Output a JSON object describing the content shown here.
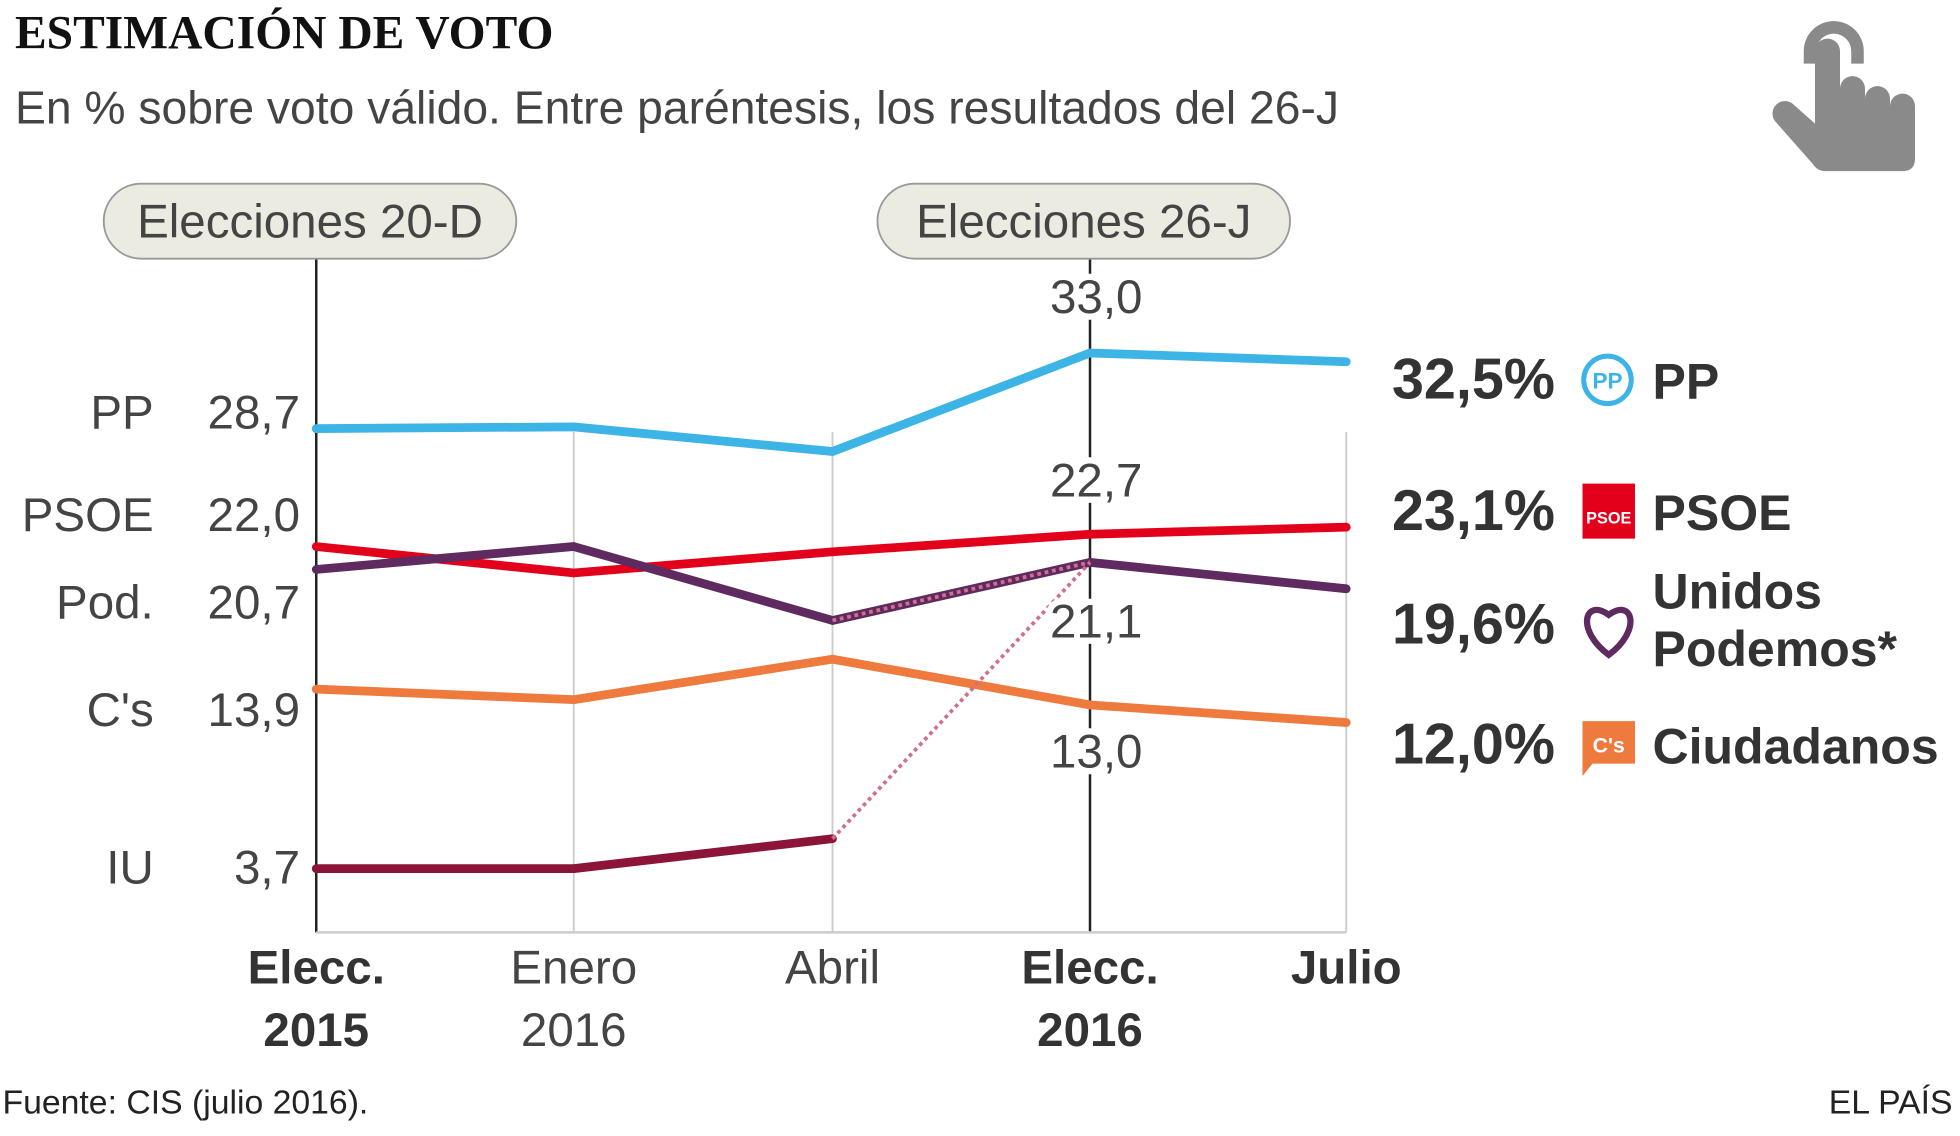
{
  "chart_data": {
    "type": "line",
    "title": "ESTIMACIÓN DE VOTO",
    "subtitle": "En % sobre voto válido. Entre paréntesis, los resultados del 26-J",
    "categories": [
      [
        "Elecc.",
        "2015"
      ],
      [
        "Enero",
        "2016"
      ],
      [
        "Abril",
        ""
      ],
      [
        "Elecc.",
        "2016"
      ],
      [
        "Julio",
        ""
      ]
    ],
    "bold_categories": [
      true,
      false,
      false,
      true,
      true
    ],
    "ylim": [
      0,
      38
    ],
    "grid": "vertical",
    "annotations": [
      {
        "label": "Elecciones 20-D",
        "category_index": 0
      },
      {
        "label": "Elecciones 26-J",
        "category_index": 3
      }
    ],
    "series": [
      {
        "name": "PP",
        "start_label": "PP",
        "start_value_label": "28,7",
        "color": "#3cb4e5",
        "values": [
          28.7,
          28.8,
          27.4,
          33.0,
          32.5
        ],
        "point_labels": {
          "3": "33,0"
        },
        "end_label": "32,5%",
        "legend": [
          "PP"
        ],
        "logo": "pp-logo"
      },
      {
        "name": "PSOE",
        "start_label": "PSOE",
        "start_value_label": "22,0",
        "color": "#e3001b",
        "values": [
          22.0,
          20.5,
          21.7,
          22.7,
          23.1
        ],
        "point_labels": {
          "3": "22,7"
        },
        "end_label": "23,1%",
        "legend": [
          "PSOE"
        ],
        "logo": "psoe-logo"
      },
      {
        "name": "Unidos Podemos",
        "start_label": "Pod.",
        "start_value_label": "20,7",
        "color": "#5e2a5f",
        "values": [
          20.7,
          22.0,
          17.8,
          21.1,
          19.6
        ],
        "point_labels": {
          "3": "21,1"
        },
        "end_label": "19,6%",
        "legend": [
          "Unidos",
          "Podemos*"
        ],
        "logo": "heart-logo",
        "dotted_segment": [
          2,
          3
        ]
      },
      {
        "name": "Ciudadanos",
        "start_label": "C's",
        "start_value_label": "13,9",
        "color": "#ee7a3e",
        "values": [
          13.9,
          13.3,
          15.6,
          13.0,
          12.0
        ],
        "point_labels": {
          "3": "13,0"
        },
        "end_label": "12,0%",
        "legend": [
          "Ciudadanos"
        ],
        "logo": "cs-logo"
      },
      {
        "name": "IU",
        "start_label": "IU",
        "start_value_label": "3,7",
        "color": "#8b1438",
        "values": [
          3.7,
          3.7,
          5.4,
          null,
          null
        ],
        "dotted_to": {
          "category_index": 3,
          "value": 21.1
        }
      }
    ],
    "dotted_color": "#d0708a",
    "source": "Fuente: CIS (julio 2016).",
    "brand": "EL PAÍS",
    "icon": "hand-pointer-icon"
  }
}
